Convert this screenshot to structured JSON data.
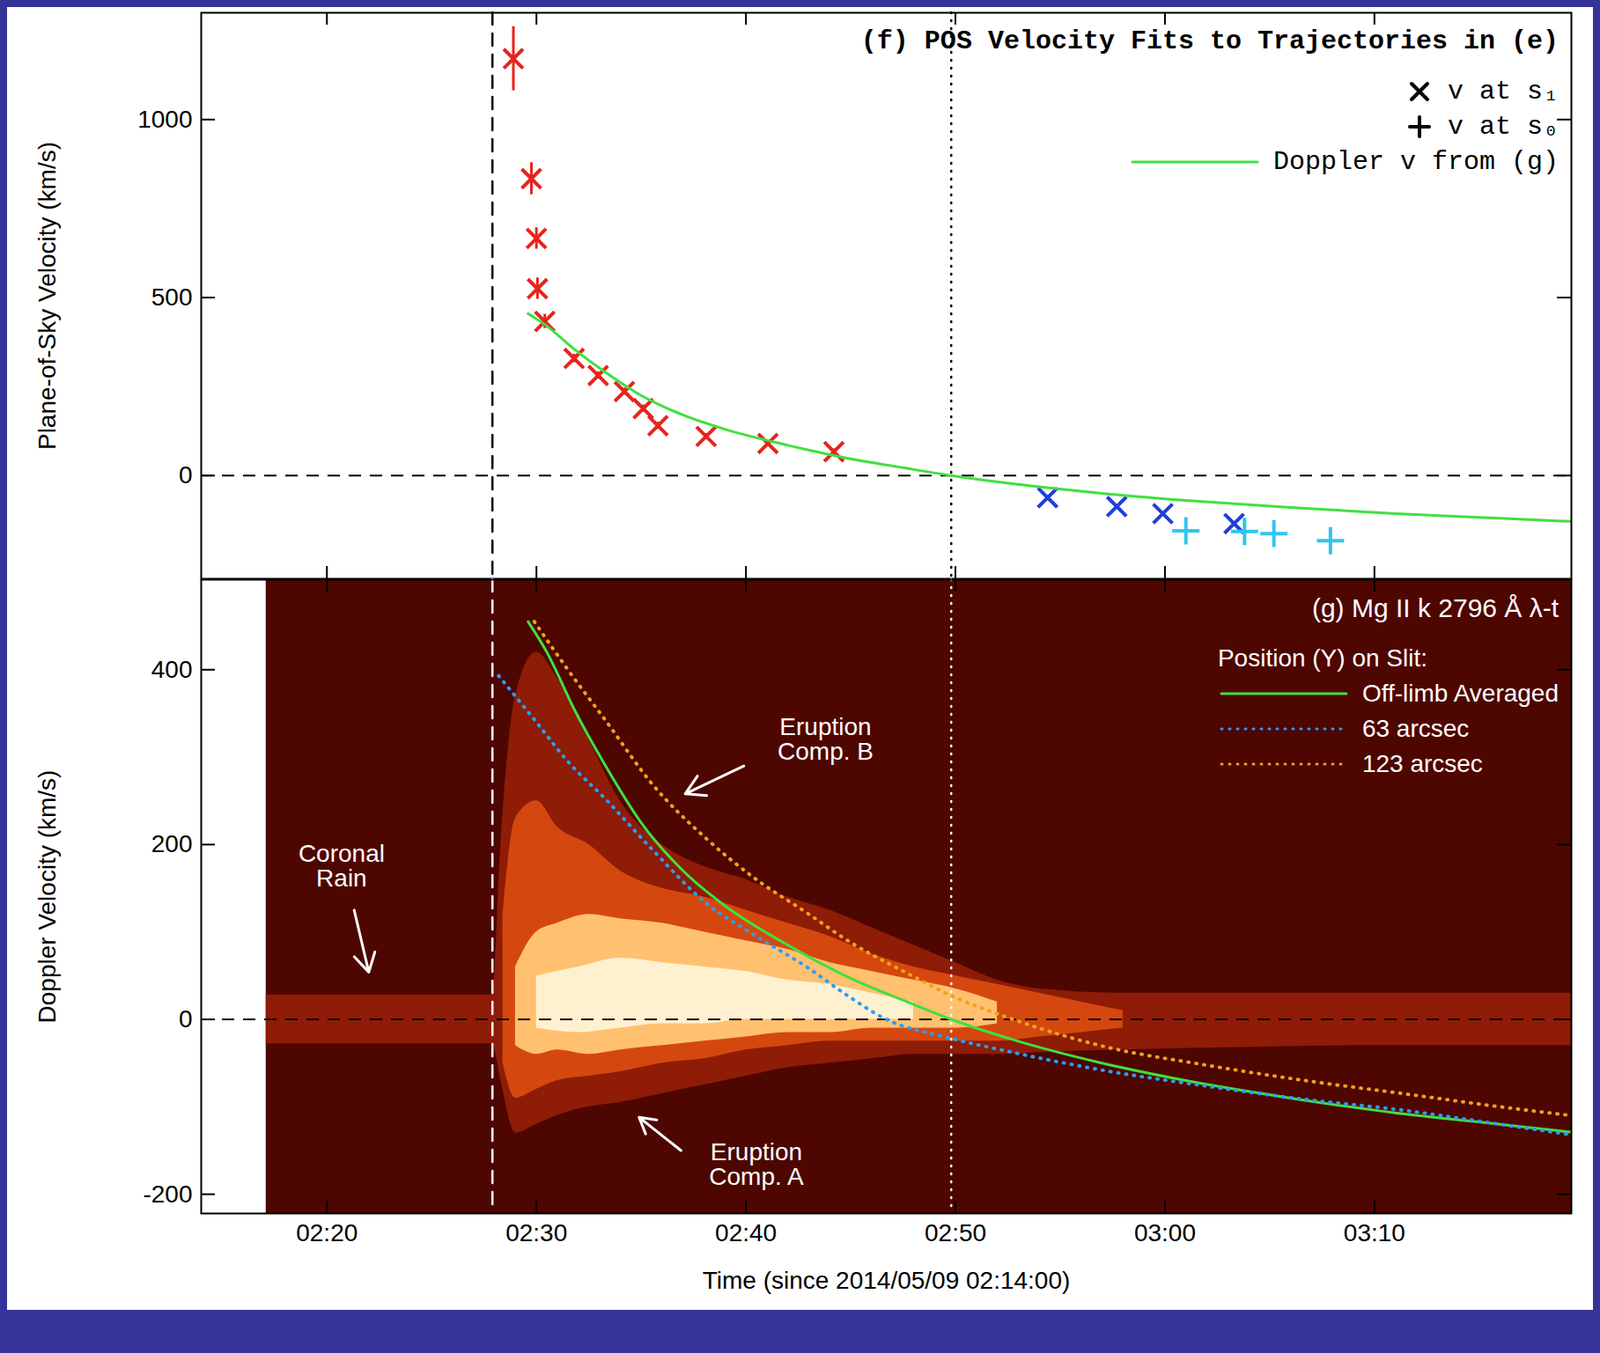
{
  "chart_data": [
    {
      "type": "scatter",
      "title": "(f) POS Velocity Fits to Trajectories in (e)",
      "y_label": "Plane-of-Sky Velocity (km/s)",
      "xlim": [
        0,
        65.4
      ],
      "xticks": [
        {
          "value": 6,
          "label": "02:20"
        },
        {
          "value": 16,
          "label": "02:30"
        },
        {
          "value": 26,
          "label": "02:40"
        },
        {
          "value": 36,
          "label": "02:50"
        },
        {
          "value": 46,
          "label": "03:00"
        },
        {
          "value": 56,
          "label": "03:10"
        }
      ],
      "ylim": [
        -290,
        1300
      ],
      "yticks": [
        0,
        500,
        1000
      ],
      "tick_labels": "y",
      "legend": "top-right",
      "hlines": [
        {
          "y": 0,
          "line_style": "dashed",
          "color": "#000000"
        }
      ],
      "vlines": [
        {
          "x": 13.9,
          "line_style": "dashed",
          "color": "#000000"
        },
        {
          "x": 35.8,
          "line_style": "dotted",
          "color": "#000000"
        }
      ],
      "series": [
        {
          "type": "scatter",
          "marker": "x",
          "color": "#e8231e",
          "x": [
            14.9,
            15.76,
            16.0,
            16.05,
            16.4,
            17.8,
            18.95,
            20.2,
            21.1,
            21.8,
            24.1,
            27.05,
            30.2
          ],
          "values": [
            1171,
            834,
            666,
            525,
            433,
            329,
            281,
            236,
            188,
            140,
            110,
            90,
            67
          ],
          "errors": [
            90,
            45,
            30,
            30,
            20,
            12,
            10,
            10,
            10,
            10,
            8,
            8,
            8
          ]
        },
        {
          "type": "scatter",
          "marker": "x",
          "color": "#1f3fd6",
          "x": [
            40.4,
            43.7,
            45.9,
            49.3
          ],
          "values": [
            -62,
            -87,
            -107,
            -135
          ]
        },
        {
          "type": "scatter",
          "marker": "plus",
          "color": "#2fc6f0",
          "x": [
            47.0,
            49.8,
            51.2,
            53.9
          ],
          "values": [
            -155,
            -157,
            -163,
            -183
          ]
        },
        {
          "type": "line",
          "color": "#3fe03f",
          "line_style": "solid",
          "x": [
            15.6,
            16.5,
            17.8,
            19.3,
            21,
            23,
            25,
            28,
            31,
            33.5,
            35.8,
            39,
            43,
            47,
            52,
            57,
            62,
            65.4
          ],
          "values": [
            455,
            420,
            355,
            290,
            225,
            170,
            130,
            85,
            47,
            22,
            0,
            -25,
            -50,
            -70,
            -90,
            -107,
            -120,
            -129
          ]
        }
      ],
      "legend_entries": [
        {
          "label": "v at s₁",
          "marker": "x",
          "color": "#000000"
        },
        {
          "label": "v at s₀",
          "marker": "plus",
          "color": "#000000"
        },
        {
          "label": "Doppler v from (g)",
          "line_style": "solid",
          "color": "#3fe03f"
        }
      ]
    },
    {
      "type": "line",
      "title": "(g) Mg II k 2796 Å λ-t",
      "x_label": "Time (since 2014/05/09 02:14:00)",
      "y_label": "Doppler Velocity (km/s)",
      "xlim": [
        0,
        65.4
      ],
      "xticks": [
        {
          "value": 6,
          "label": "02:20"
        },
        {
          "value": 16,
          "label": "02:30"
        },
        {
          "value": 26,
          "label": "02:40"
        },
        {
          "value": 36,
          "label": "02:50"
        },
        {
          "value": 46,
          "label": "03:00"
        },
        {
          "value": 56,
          "label": "03:10"
        }
      ],
      "ylim": [
        -222,
        503
      ],
      "yticks": [
        -200,
        0,
        200,
        400
      ],
      "legend": "top-right",
      "legend_title": "Position (Y) on Slit:",
      "spectrum": {
        "x_start": 3.1,
        "background": "#4e0600",
        "layers": [
          {
            "color": "#8e1c06",
            "x": [
              3.1,
              13.9,
              14.3,
              15,
              16,
              17,
              18.5,
              20,
              22,
              24,
              26,
              28,
              30,
              32,
              34,
              36,
              38,
              40,
              44,
              50,
              56,
              65.4
            ],
            "upper": [
              28,
              28,
              200,
              370,
              420,
              390,
              320,
              250,
              200,
              175,
              160,
              140,
              125,
              105,
              85,
              65,
              45,
              35,
              30,
              30,
              30,
              30
            ],
            "lower": [
              -28,
              -28,
              -70,
              -130,
              -120,
              -110,
              -100,
              -95,
              -85,
              -75,
              -65,
              -55,
              -50,
              -45,
              -40,
              -40,
              -40,
              -38,
              -35,
              -32,
              -30,
              -30
            ]
          },
          {
            "color": "#d4480f",
            "x": [
              14.4,
              15,
              16,
              17,
              18.5,
              20,
              22,
              24,
              26,
              28,
              30,
              32,
              34,
              36,
              38,
              40,
              42,
              44
            ],
            "upper": [
              120,
              230,
              250,
              220,
              200,
              170,
              150,
              140,
              125,
              110,
              95,
              75,
              60,
              50,
              40,
              30,
              20,
              10
            ],
            "lower": [
              -50,
              -90,
              -80,
              -70,
              -65,
              -60,
              -50,
              -45,
              -35,
              -30,
              -25,
              -25,
              -25,
              -25,
              -25,
              -20,
              -15,
              -10
            ]
          },
          {
            "color": "#ffc070",
            "x": [
              15,
              16,
              17,
              18.5,
              20,
              22,
              24,
              26,
              28,
              30,
              32,
              34,
              36,
              38
            ],
            "upper": [
              60,
              100,
              110,
              120,
              115,
              110,
              100,
              90,
              80,
              65,
              55,
              45,
              35,
              20
            ],
            "lower": [
              -30,
              -40,
              -35,
              -40,
              -35,
              -30,
              -25,
              -20,
              -15,
              -15,
              -10,
              -10,
              -10,
              -5
            ]
          },
          {
            "color": "#fff0d0",
            "x": [
              16,
              18,
              20,
              22,
              24,
              26,
              28,
              30,
              32,
              34
            ],
            "upper": [
              50,
              60,
              70,
              65,
              60,
              55,
              45,
              40,
              30,
              20
            ],
            "lower": [
              -10,
              -15,
              -10,
              -5,
              -5,
              0,
              0,
              0,
              0,
              0
            ]
          }
        ]
      },
      "hlines": [
        {
          "y": 0,
          "line_style": "dashed",
          "color": "#000000"
        }
      ],
      "vlines": [
        {
          "x": 13.9,
          "line_style": "dashed",
          "color": "#ffffff"
        },
        {
          "x": 35.8,
          "line_style": "dotted",
          "color": "#ffffff"
        }
      ],
      "series": [
        {
          "name": "Off-limb Averaged",
          "type": "line",
          "color": "#3fe03f",
          "line_style": "solid",
          "x": [
            15.6,
            16.5,
            17.8,
            19.3,
            21,
            23,
            25,
            28,
            31,
            33.5,
            35.8,
            39,
            43,
            47,
            52,
            57,
            62,
            65.4
          ],
          "values": [
            455,
            420,
            355,
            290,
            225,
            170,
            130,
            85,
            47,
            22,
            0,
            -25,
            -50,
            -70,
            -90,
            -107,
            -120,
            -129
          ]
        },
        {
          "name": "63 arcsec",
          "type": "line",
          "color": "#2a9df4",
          "line_style": "dotted",
          "x": [
            14.2,
            16,
            17.5,
            19.3,
            21.5,
            24.1,
            26.5,
            28.9,
            30.8,
            32.7,
            35.5,
            38.4,
            43,
            47.9,
            52.5,
            57.4,
            62,
            65.4
          ],
          "values": [
            393,
            340,
            295,
            252,
            195,
            133,
            95,
            60,
            28,
            0,
            -20,
            -36,
            -58,
            -76,
            -91,
            -104,
            -120,
            -132
          ]
        },
        {
          "name": "123 arcsec",
          "type": "line",
          "color": "#f0a020",
          "line_style": "dotted",
          "x": [
            15.9,
            17.5,
            19.3,
            21.5,
            24.1,
            26.5,
            28.9,
            31,
            33.6,
            36,
            38.4,
            43.1,
            47.9,
            52.7,
            57.4,
            62,
            65.4
          ],
          "values": [
            455,
            400,
            342,
            270,
            207,
            160,
            122,
            88,
            54,
            25,
            3,
            -31,
            -52,
            -70,
            -85,
            -100,
            -110
          ]
        }
      ],
      "annotations": [
        {
          "text": "Coronal\nRain",
          "x": 6.7,
          "y": 175,
          "ax1": 7.3,
          "ay1": 125,
          "ax2": 8.0,
          "ay2": 54,
          "color": "#ffffff"
        },
        {
          "text": "Eruption\nComp. B",
          "x": 29.8,
          "y": 320,
          "ax1": 25.9,
          "ay1": 290,
          "ax2": 23.1,
          "ay2": 258,
          "color": "#ffffff"
        },
        {
          "text": "Eruption\nComp. A",
          "x": 26.5,
          "y": -166,
          "ax1": 22.9,
          "ay1": -150,
          "ax2": 20.9,
          "ay2": -112,
          "color": "#ffffff"
        }
      ]
    }
  ]
}
